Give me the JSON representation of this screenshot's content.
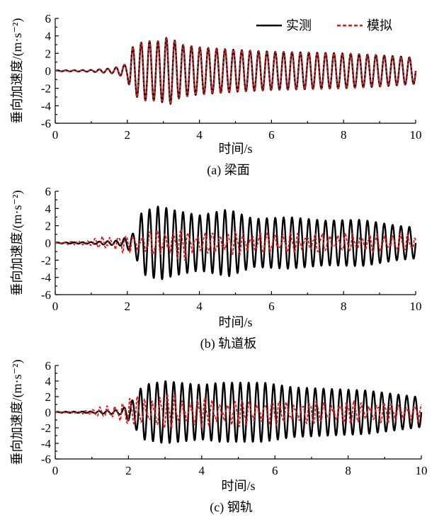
{
  "legend": {
    "measured_label": "实测",
    "simulated_label": "模拟",
    "measured_color": "#000000",
    "simulated_color": "#e31a1c"
  },
  "chart_data": [
    {
      "type": "line",
      "caption": "(a) 梁面",
      "xlabel": "时间/s",
      "ylabel": "垂向加速度/(m·s⁻²)",
      "xlim": [
        0,
        10
      ],
      "ylim": [
        -6,
        6
      ],
      "xticks": [
        "0",
        "2",
        "4",
        "6",
        "8",
        "10"
      ],
      "yticks": [
        "6",
        "4",
        "2",
        "0",
        "-2",
        "-4",
        "-6"
      ],
      "grid": false,
      "legend_position": "top-right",
      "series": [
        {
          "name": "实测",
          "x": [
            0,
            1.0,
            1.6,
            2.0,
            2.1,
            2.45,
            2.85,
            3.15,
            3.5,
            4.0,
            5.0,
            6.0,
            7.0,
            8.0,
            9.0,
            10.0
          ],
          "envelope": [
            0.05,
            0.1,
            0.3,
            0.8,
            2.6,
            3.4,
            3.4,
            3.9,
            3.0,
            2.7,
            2.4,
            2.2,
            2.1,
            2.0,
            1.8,
            1.5
          ]
        },
        {
          "name": "模拟",
          "x": [
            0,
            1.0,
            1.6,
            2.0,
            2.1,
            2.45,
            2.85,
            3.15,
            3.5,
            4.0,
            5.0,
            6.0,
            7.0,
            8.0,
            9.0,
            10.0
          ],
          "envelope": [
            0.05,
            0.1,
            0.3,
            0.8,
            2.6,
            3.4,
            3.4,
            3.9,
            3.0,
            2.7,
            2.4,
            2.2,
            2.1,
            2.0,
            1.8,
            1.5
          ]
        }
      ]
    },
    {
      "type": "line",
      "caption": "(b) 轨道板",
      "xlabel": "时间/s",
      "ylabel": "垂向加速度/(m·s⁻²)",
      "xlim": [
        0,
        10
      ],
      "ylim": [
        -6,
        6
      ],
      "xticks": [
        "0",
        "2",
        "4",
        "6",
        "8",
        "10"
      ],
      "yticks": [
        "6",
        "4",
        "2",
        "0",
        "-2",
        "-4",
        "-6"
      ],
      "grid": false,
      "series": [
        {
          "name": "实测",
          "x": [
            0,
            1.0,
            1.8,
            2.2,
            2.4,
            2.9,
            3.3,
            4.0,
            4.8,
            5.5,
            6.5,
            7.5,
            8.5,
            9.5,
            10.0
          ],
          "envelope": [
            0.05,
            0.1,
            0.3,
            1.2,
            3.6,
            4.3,
            3.8,
            3.2,
            3.9,
            2.8,
            3.0,
            2.6,
            2.7,
            2.0,
            1.8
          ]
        },
        {
          "name": "模拟",
          "x": [
            0,
            1.0,
            1.7,
            2.0,
            3.0,
            3.6,
            4.0,
            5.0,
            6.0,
            7.0,
            8.0,
            9.0,
            10.0
          ],
          "envelope": [
            0.05,
            0.5,
            1.3,
            1.2,
            2.0,
            2.2,
            1.5,
            1.6,
            1.5,
            1.4,
            1.3,
            1.3,
            1.2
          ]
        }
      ]
    },
    {
      "type": "line",
      "caption": "(c) 钢轨",
      "xlabel": "时间/s",
      "ylabel": "垂向加速度/(m·s⁻²)",
      "xlim": [
        0,
        10
      ],
      "ylim": [
        -6,
        6
      ],
      "xticks": [
        "0",
        "2",
        "4",
        "6",
        "8",
        "10"
      ],
      "yticks": [
        "6",
        "4",
        "2",
        "0",
        "-2",
        "-4",
        "-6"
      ],
      "grid": false,
      "series": [
        {
          "name": "实测",
          "x": [
            0,
            1.0,
            1.8,
            2.1,
            2.4,
            3.0,
            4.0,
            4.5,
            5.7,
            6.5,
            7.5,
            8.5,
            9.5,
            10.0
          ],
          "envelope": [
            0.05,
            0.1,
            0.3,
            1.5,
            3.5,
            4.0,
            3.5,
            3.8,
            3.8,
            3.2,
            3.0,
            2.8,
            2.2,
            1.9
          ]
        },
        {
          "name": "模拟",
          "x": [
            0,
            1.0,
            1.6,
            2.0,
            2.7,
            3.5,
            4.5,
            5.5,
            6.5,
            7.5,
            8.5,
            9.5,
            10.0
          ],
          "envelope": [
            0.05,
            0.4,
            1.5,
            2.0,
            2.8,
            2.4,
            2.0,
            2.0,
            1.8,
            1.8,
            1.7,
            1.5,
            1.4
          ]
        }
      ]
    }
  ]
}
